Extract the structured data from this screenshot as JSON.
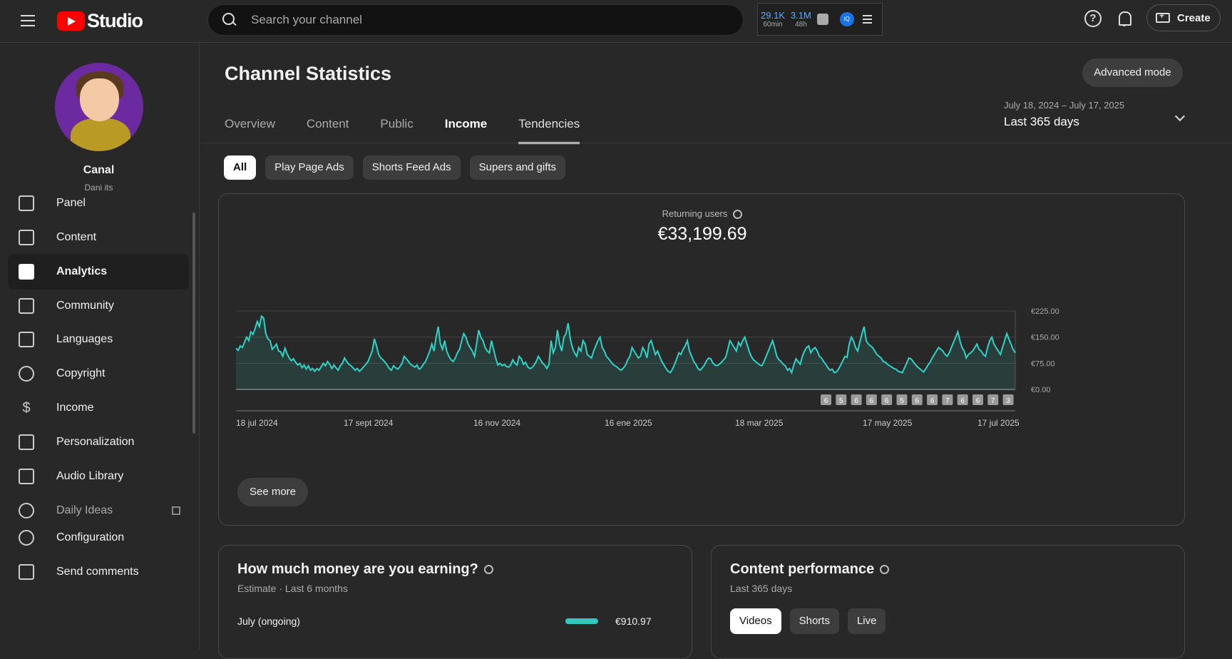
{
  "header": {
    "logo_text": "Studio",
    "search_placeholder": "Search your channel",
    "stats": [
      {
        "value": "29.1K",
        "label": "60min"
      },
      {
        "value": "3.1M",
        "label": "48h"
      }
    ],
    "help_glyph": "?",
    "create_label": "Create"
  },
  "sidebar": {
    "channel_name": "Canal",
    "channel_handle": "Dani its",
    "items": [
      {
        "label": "Panel",
        "icon": "dashboard-icon"
      },
      {
        "label": "Content",
        "icon": "content-icon"
      },
      {
        "label": "Analytics",
        "icon": "analytics-icon",
        "active": true
      },
      {
        "label": "Community",
        "icon": "community-icon"
      },
      {
        "label": "Languages",
        "icon": "subtitles-icon"
      },
      {
        "label": "Copyright",
        "icon": "copyright-icon"
      },
      {
        "label": "Income",
        "icon": "dollar-icon"
      },
      {
        "label": "Personalization",
        "icon": "magic-wand-icon"
      },
      {
        "label": "Audio Library",
        "icon": "audio-library-icon"
      },
      {
        "label": "Daily Ideas",
        "icon": "ideas-icon"
      },
      {
        "label": "Configuration",
        "icon": "gear-icon"
      },
      {
        "label": "Send comments",
        "icon": "feedback-icon"
      }
    ]
  },
  "main": {
    "title": "Channel Statistics",
    "advanced_mode_label": "Advanced mode",
    "tabs": [
      {
        "label": "Overview"
      },
      {
        "label": "Content"
      },
      {
        "label": "Public"
      },
      {
        "label": "Income",
        "active": true
      },
      {
        "label": "Tendencies",
        "underlined": true
      }
    ],
    "date_range": "July 18, 2024 – July 17, 2025",
    "date_preset": "Last 365 days",
    "chips": [
      {
        "label": "All",
        "active": true
      },
      {
        "label": "Play Page Ads"
      },
      {
        "label": "Shorts Feed Ads"
      },
      {
        "label": "Supers and gifts"
      }
    ],
    "metric_label": "Returning users",
    "metric_value": "€33,199.69",
    "see_more_label": "See more"
  },
  "earnings_card": {
    "title": "How much money are you earning?",
    "subtitle": "Estimate · Last 6 months",
    "row_label": "July (ongoing)",
    "row_value": "€910.97"
  },
  "performance_card": {
    "title": "Content performance",
    "subtitle": "Last 365 days",
    "pills": [
      {
        "label": "Videos",
        "active": true
      },
      {
        "label": "Shorts"
      },
      {
        "label": "Live"
      }
    ]
  },
  "chart_data": {
    "type": "area",
    "title": "",
    "xlabel": "",
    "ylabel": "",
    "ylim": [
      0,
      225
    ],
    "y_ticks": [
      "€0.00",
      "€75.00",
      "€150.00",
      "€225.00"
    ],
    "x_tick_labels": [
      "18 jul 2024",
      "17 sept 2024",
      "16 nov 2024",
      "16 ene 2025",
      "18 mar 2025",
      "17 may 2025",
      "17 jul 2025"
    ],
    "color": "#2fd3c8",
    "markers": [
      "6",
      "5",
      "6",
      "6",
      "6",
      "5",
      "6",
      "6",
      "7",
      "6",
      "6",
      "7",
      "3"
    ],
    "values": [
      118,
      112,
      125,
      120,
      135,
      150,
      140,
      165,
      158,
      175,
      195,
      180,
      210,
      205,
      160,
      145,
      140,
      115,
      122,
      130,
      110,
      108,
      95,
      118,
      102,
      90,
      82,
      88,
      78,
      70,
      75,
      62,
      70,
      58,
      68,
      55,
      60,
      52,
      60,
      55,
      65,
      75,
      68,
      80,
      72,
      60,
      70,
      62,
      55,
      68,
      75,
      90,
      80,
      72,
      68,
      62,
      55,
      60,
      52,
      58,
      65,
      72,
      80,
      95,
      110,
      145,
      125,
      100,
      90,
      85,
      78,
      70,
      60,
      55,
      68,
      62,
      58,
      65,
      75,
      95,
      88,
      80,
      72,
      68,
      64,
      70,
      58,
      62,
      72,
      80,
      94,
      110,
      130,
      110,
      150,
      180,
      130,
      115,
      140,
      110,
      95,
      85,
      80,
      90,
      105,
      115,
      140,
      160,
      150,
      130,
      120,
      110,
      95,
      130,
      170,
      150,
      140,
      120,
      110,
      105,
      140,
      115,
      90,
      70,
      75,
      68,
      72,
      66,
      64,
      70,
      85,
      75,
      70,
      95,
      88,
      72,
      78,
      65,
      60,
      62,
      70,
      80,
      95,
      85,
      75,
      70,
      60,
      72,
      140,
      105,
      120,
      170,
      130,
      110,
      150,
      160,
      190,
      145,
      120,
      105,
      95,
      120,
      110,
      140,
      130,
      100,
      95,
      90,
      110,
      125,
      140,
      150,
      120,
      110,
      95,
      88,
      80,
      72,
      68,
      64,
      58,
      55,
      62,
      70,
      85,
      95,
      120,
      110,
      100,
      90,
      95,
      120,
      110,
      90,
      130,
      140,
      120,
      100,
      110,
      95,
      80,
      70,
      60,
      52,
      48,
      58,
      72,
      88,
      105,
      100,
      115,
      125,
      140,
      110,
      95,
      80,
      72,
      60,
      55,
      62,
      70,
      82,
      90,
      88,
      75,
      70,
      68,
      72,
      78,
      85,
      92,
      115,
      140,
      130,
      120,
      110,
      135,
      125,
      140,
      150,
      130,
      110,
      95,
      85,
      80,
      75,
      70,
      68,
      80,
      95,
      110,
      125,
      140,
      120,
      95,
      85,
      80,
      72,
      68,
      55,
      60,
      48,
      70,
      88,
      80,
      72,
      95,
      110,
      120,
      125,
      105,
      115,
      120,
      110,
      95,
      90,
      80,
      72,
      62,
      55,
      58,
      48,
      50,
      58,
      70,
      82,
      95,
      92,
      130,
      150,
      140,
      120,
      110,
      135,
      160,
      180,
      140,
      130,
      125,
      120,
      110,
      100,
      95,
      90,
      80,
      78,
      72,
      68,
      64,
      60,
      58,
      52,
      50,
      48,
      62,
      75,
      90,
      88,
      80,
      72,
      65,
      60,
      55,
      50,
      60,
      70,
      78,
      90,
      100,
      110,
      120,
      115,
      110,
      100,
      95,
      105,
      120,
      135,
      150,
      165,
      140,
      120,
      110,
      90,
      100,
      105,
      110,
      120,
      130,
      115,
      110,
      100,
      95,
      120,
      140,
      150,
      130,
      120,
      110,
      100,
      120,
      140,
      160,
      145,
      130,
      115,
      105
    ]
  }
}
